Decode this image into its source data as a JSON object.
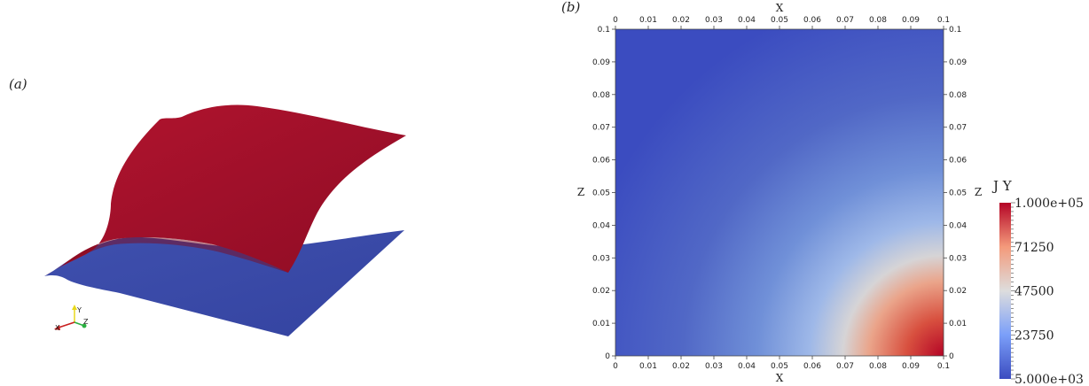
{
  "panel_a": {
    "label": "(a)",
    "surface_colors": {
      "top": "#a0102a",
      "bottom": "#3a4aa8"
    },
    "triad": {
      "labels": [
        "X",
        "Y",
        "Z"
      ],
      "colors": {
        "x": "#c81e1e",
        "y": "#e8d81a",
        "z": "#2ab040"
      }
    }
  },
  "panel_b": {
    "label": "(b)",
    "x_axis_title": "X",
    "z_axis_title": "Z",
    "x_ticks": [
      "0",
      "0.01",
      "0.02",
      "0.03",
      "0.04",
      "0.05",
      "0.06",
      "0.07",
      "0.08",
      "0.09",
      "0.1"
    ],
    "z_ticks": [
      "0",
      "0.01",
      "0.02",
      "0.03",
      "0.04",
      "0.05",
      "0.06",
      "0.07",
      "0.08",
      "0.09",
      "0.1"
    ],
    "field_colors": {
      "low": "#3b4cc0",
      "mid": "#dddddd",
      "high": "#b40426"
    },
    "colorbar": {
      "title": "J Y",
      "labels": [
        "1.000e+05",
        "71250",
        "47500",
        "23750",
        "5.000e+03"
      ],
      "min": 5000,
      "max": 100000
    }
  }
}
